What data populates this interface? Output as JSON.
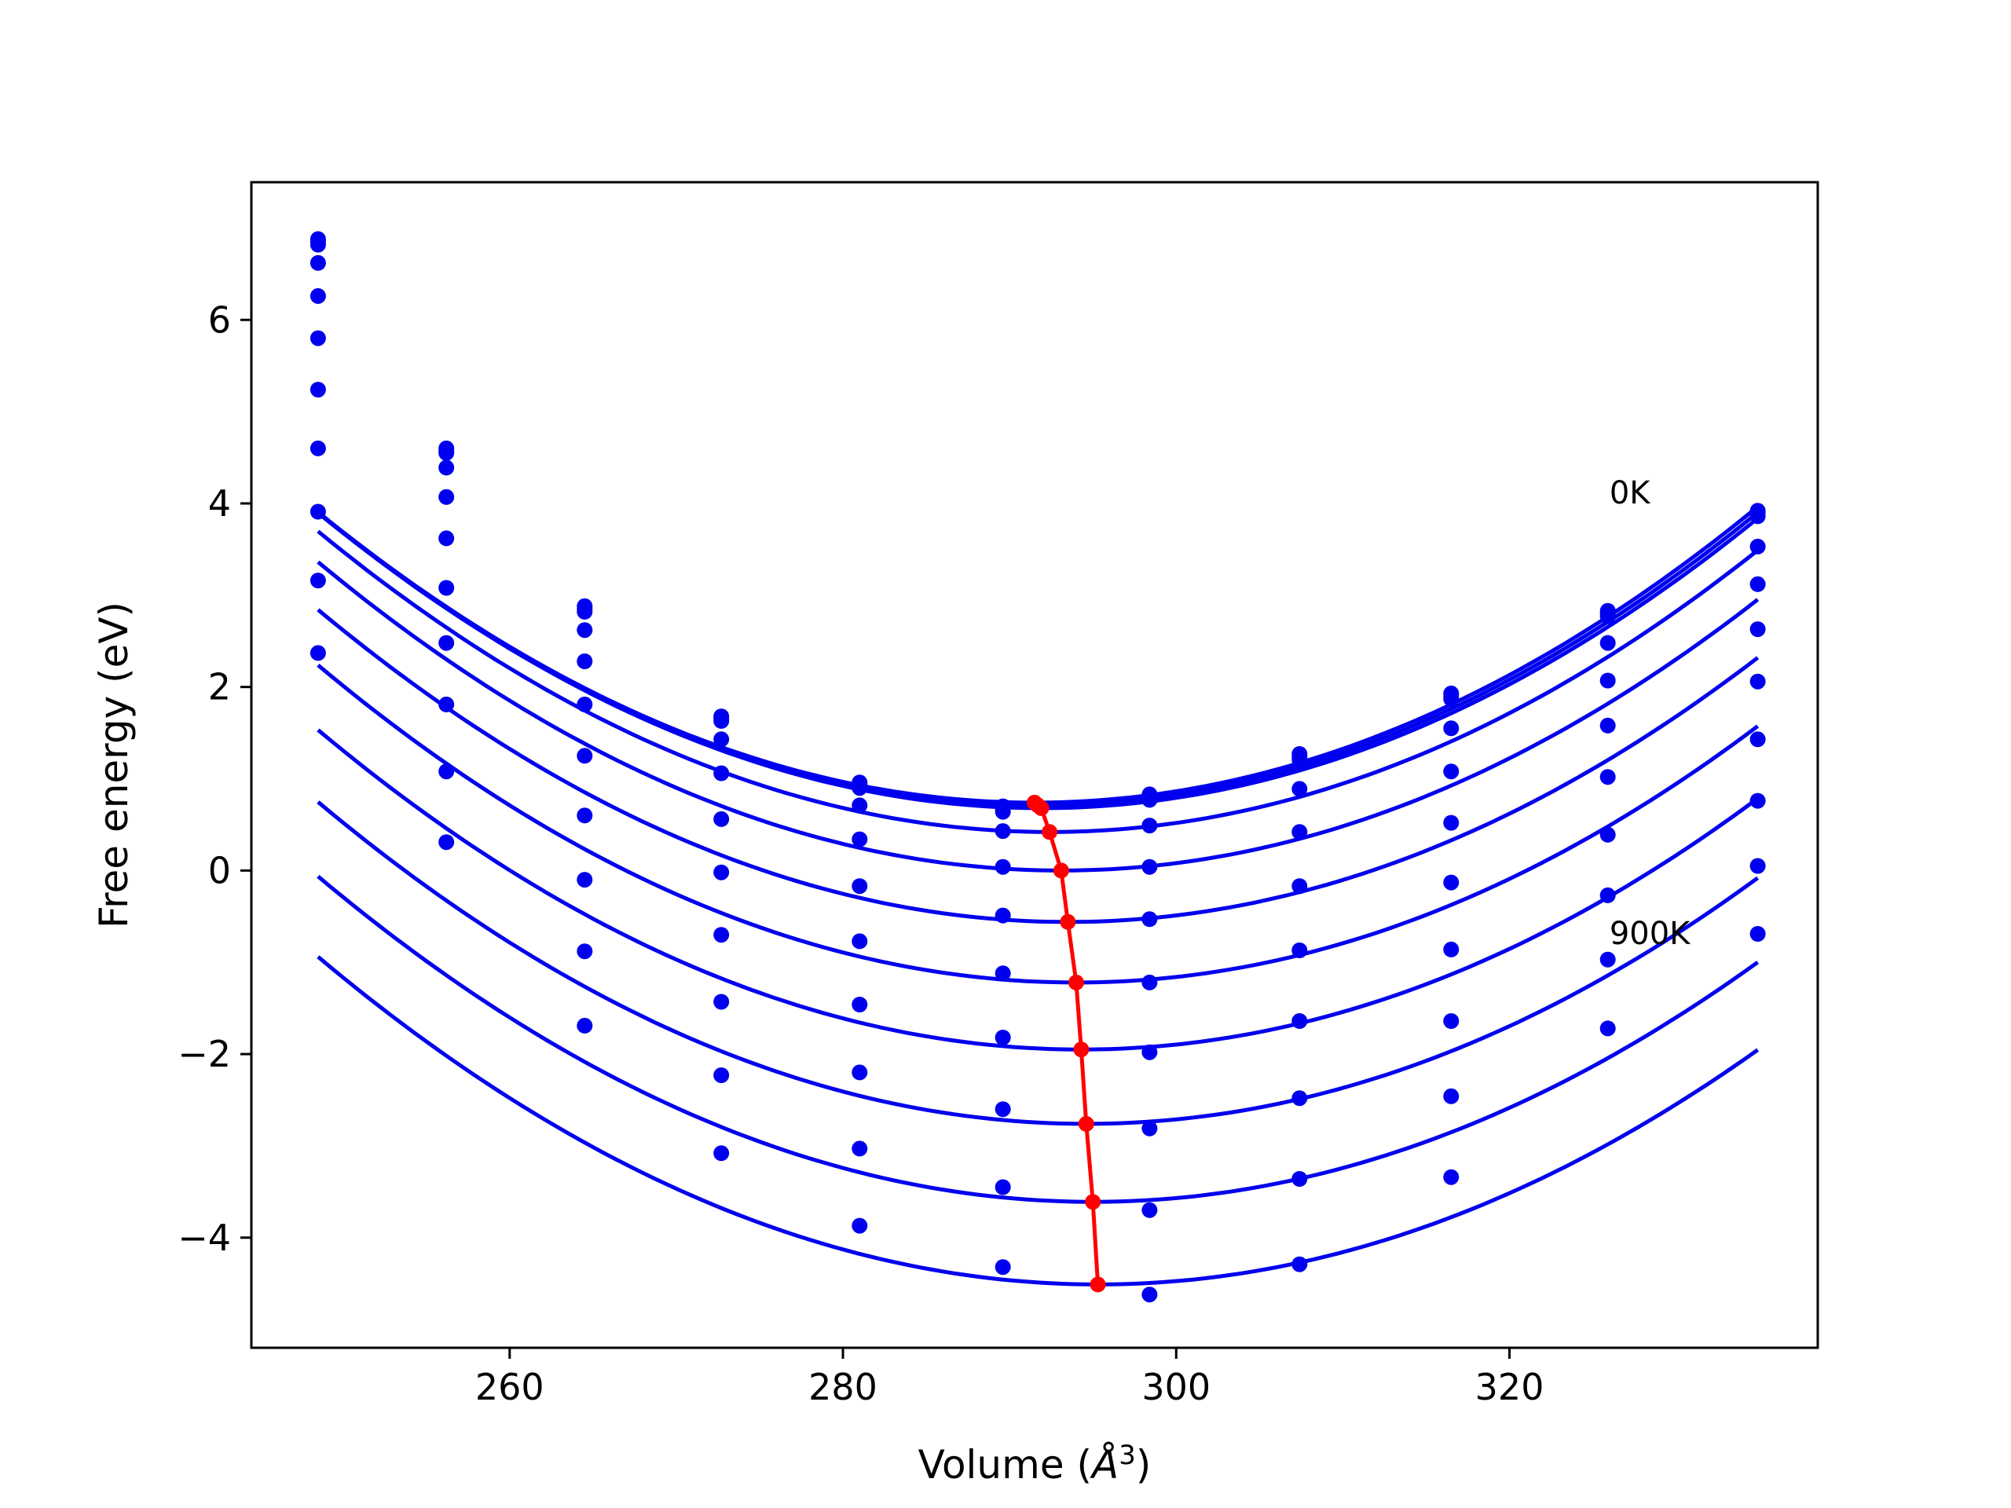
{
  "chart_data": {
    "type": "line",
    "title": "",
    "xlabel": "Volume (Å³)",
    "xlabel_base": "Volume (",
    "xlabel_symbol": "Å",
    "xlabel_exp": "3",
    "xlabel_close": ")",
    "ylabel": "Free energy (eV)",
    "xlim": [
      244.5,
      338.5
    ],
    "ylim": [
      -5.2,
      7.5
    ],
    "xticks": [
      260,
      280,
      300,
      320
    ],
    "xtick_labels": [
      "260",
      "280",
      "300",
      "320"
    ],
    "yticks": [
      6,
      4,
      2,
      0,
      -2,
      -4
    ],
    "ytick_labels": [
      "6",
      "4",
      "2",
      "0",
      "−2",
      "−4"
    ],
    "grid": false,
    "colors": {
      "fit": "#0000ee",
      "points": "#0000ee",
      "minima": "#ff0000",
      "frame": "#000000"
    },
    "annotations": [
      {
        "text": "0K",
        "x": 326,
        "y": 4.0
      },
      {
        "text": "900K",
        "x": 326,
        "y": -0.8
      }
    ],
    "x": [
      248.5,
      256.2,
      264.5,
      272.7,
      281.0,
      289.6,
      298.4,
      307.4,
      316.5,
      325.9,
      334.9
    ],
    "series": [
      {
        "values": [
          6.88,
          4.6,
          2.88,
          1.68,
          0.96,
          0.7,
          0.83,
          1.27,
          1.93,
          2.83,
          3.92
        ]
      },
      {
        "values": [
          6.85,
          4.57,
          2.85,
          1.66,
          0.93,
          0.67,
          0.8,
          1.24,
          1.9,
          2.8,
          3.89
        ]
      },
      {
        "values": [
          6.82,
          4.55,
          2.82,
          1.63,
          0.9,
          0.64,
          0.77,
          1.21,
          1.87,
          2.77,
          3.86
        ]
      },
      {
        "values": [
          6.62,
          4.39,
          2.62,
          1.43,
          0.71,
          0.43,
          0.49,
          0.89,
          1.55,
          2.48,
          3.53
        ]
      },
      {
        "values": [
          6.26,
          4.07,
          2.28,
          1.06,
          0.34,
          0.04,
          0.04,
          0.42,
          1.08,
          2.07,
          3.12
        ]
      },
      {
        "values": [
          5.8,
          3.62,
          1.81,
          0.56,
          -0.17,
          -0.49,
          -0.53,
          -0.17,
          0.52,
          1.58,
          2.63
        ]
      },
      {
        "values": [
          5.24,
          3.08,
          1.25,
          -0.02,
          -0.77,
          -1.12,
          -1.22,
          -0.87,
          -0.13,
          1.02,
          2.06
        ]
      },
      {
        "values": [
          4.6,
          2.48,
          0.6,
          -0.7,
          -1.46,
          -1.82,
          -1.98,
          -1.64,
          -0.86,
          0.39,
          1.43
        ]
      },
      {
        "values": [
          3.91,
          1.81,
          -0.1,
          -1.43,
          -2.2,
          -2.6,
          -2.81,
          -2.48,
          -1.64,
          -0.27,
          0.76
        ]
      },
      {
        "values": [
          3.16,
          1.08,
          -0.88,
          -2.23,
          -3.03,
          -3.45,
          -3.7,
          -3.36,
          -2.46,
          -0.97,
          0.05
        ]
      },
      {
        "values": [
          2.37,
          0.31,
          -1.69,
          -3.08,
          -3.87,
          -4.32,
          -4.62,
          -4.29,
          -3.34,
          -1.72,
          -0.69
        ]
      }
    ],
    "fits": [
      {
        "x_min": 248.5,
        "x_max": 334.9,
        "vmin": 291.5,
        "fmin": 0.74,
        "a": 0.001712
      },
      {
        "x_min": 248.5,
        "x_max": 334.9,
        "vmin": 291.7,
        "fmin": 0.71,
        "a": 0.00171
      },
      {
        "x_min": 248.5,
        "x_max": 334.9,
        "vmin": 291.9,
        "fmin": 0.68,
        "a": 0.001708
      },
      {
        "x_min": 248.5,
        "x_max": 334.9,
        "vmin": 292.4,
        "fmin": 0.42,
        "a": 0.0017
      },
      {
        "x_min": 248.5,
        "x_max": 334.9,
        "vmin": 293.1,
        "fmin": 0.0,
        "a": 0.00169
      },
      {
        "x_min": 248.5,
        "x_max": 334.9,
        "vmin": 293.5,
        "fmin": -0.56,
        "a": 0.00168
      },
      {
        "x_min": 248.5,
        "x_max": 334.9,
        "vmin": 294.0,
        "fmin": -1.22,
        "a": 0.00167
      },
      {
        "x_min": 248.5,
        "x_max": 334.9,
        "vmin": 294.3,
        "fmin": -1.95,
        "a": 0.00166
      },
      {
        "x_min": 248.5,
        "x_max": 334.9,
        "vmin": 294.6,
        "fmin": -2.76,
        "a": 0.00165
      },
      {
        "x_min": 248.5,
        "x_max": 334.9,
        "vmin": 295.0,
        "fmin": -3.61,
        "a": 0.00164
      },
      {
        "x_min": 248.5,
        "x_max": 334.9,
        "vmin": 295.3,
        "fmin": -4.51,
        "a": 0.00163
      }
    ],
    "minima": {
      "x": [
        291.5,
        291.7,
        291.9,
        292.4,
        293.1,
        293.5,
        294.0,
        294.3,
        294.6,
        295.0,
        295.3
      ],
      "y": [
        0.74,
        0.71,
        0.68,
        0.42,
        0.0,
        -0.56,
        -1.22,
        -1.95,
        -2.76,
        -3.61,
        -4.51
      ]
    }
  }
}
